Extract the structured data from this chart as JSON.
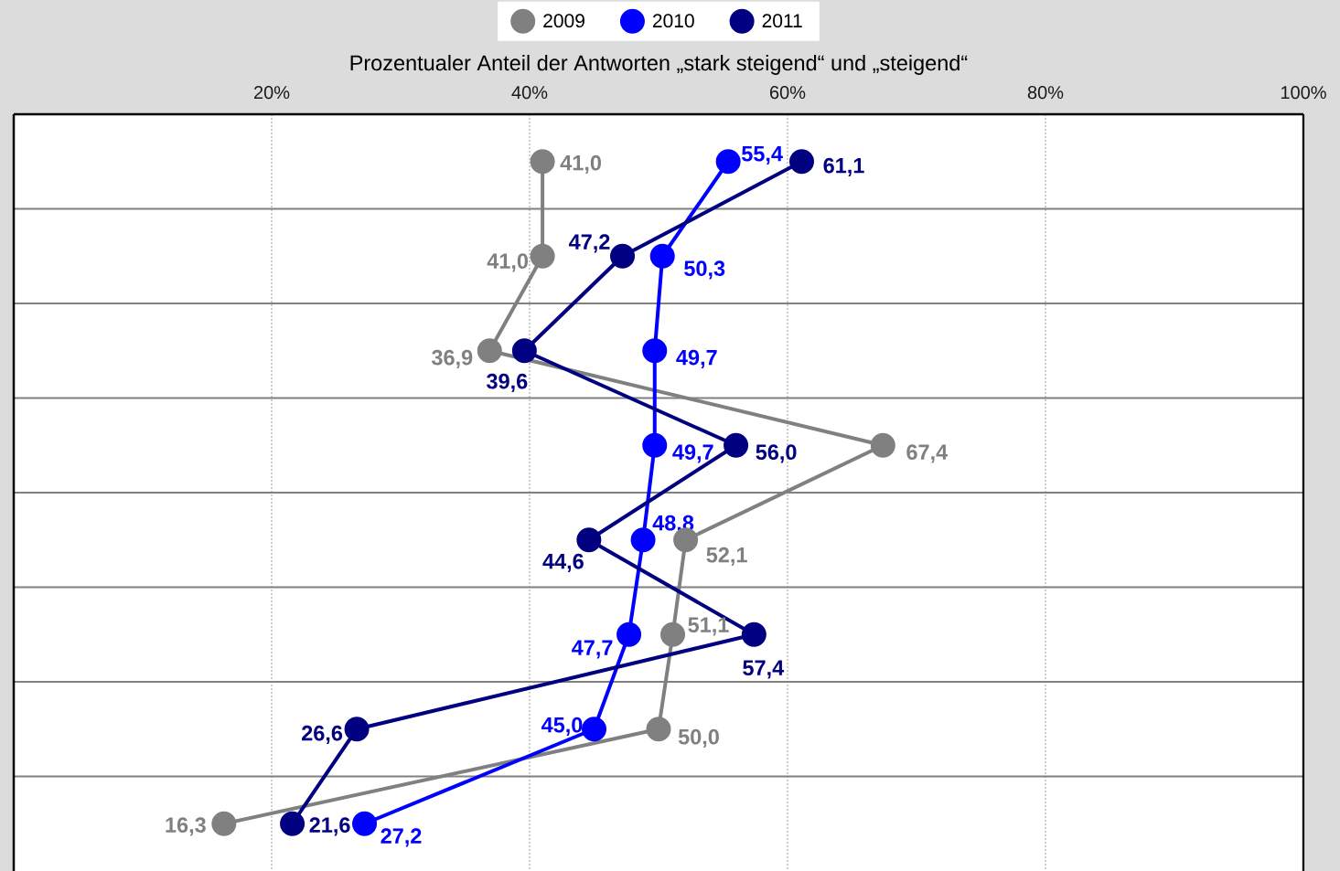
{
  "chart_data": {
    "type": "line",
    "orientation": "horizontal",
    "xlabel": "Prozentualer Anteil der Antworten „stark steigend“ und „steigend“",
    "categories": [
      null,
      null,
      null,
      null,
      null,
      null,
      null,
      null
    ],
    "series": [
      {
        "name": "2009",
        "color": "#808080",
        "values": [
          41.0,
          41.0,
          36.9,
          67.4,
          52.1,
          51.1,
          50.0,
          16.3
        ],
        "value_labels": [
          "41,0",
          "41,0",
          "36,9",
          "67,4",
          "52,1",
          "51,1",
          "50,0",
          "16,3"
        ]
      },
      {
        "name": "2010",
        "color": "#0000ff",
        "values": [
          55.4,
          50.3,
          49.7,
          49.7,
          48.8,
          47.7,
          45.0,
          27.2
        ],
        "value_labels": [
          "55,4",
          "50,3",
          "49,7",
          "49,7",
          "48,8",
          "47,7",
          "45,0",
          "27,2"
        ]
      },
      {
        "name": "2011",
        "color": "#000080",
        "values": [
          61.1,
          47.2,
          39.6,
          56.0,
          44.6,
          57.4,
          26.6,
          21.6
        ],
        "value_labels": [
          "61,1",
          "47,2",
          "39,6",
          "56,0",
          "44,6",
          "57,4",
          "26,6",
          "21,6"
        ]
      }
    ],
    "xlim": [
      0,
      100
    ],
    "xticks": [
      {
        "value": 20,
        "label": "20%"
      },
      {
        "value": 40,
        "label": "40%"
      },
      {
        "value": 60,
        "label": "60%"
      },
      {
        "value": 80,
        "label": "80%"
      },
      {
        "value": 100,
        "label": "100%"
      }
    ],
    "grid": true,
    "legend": "top",
    "marker": "circle",
    "line_style": "solid"
  }
}
